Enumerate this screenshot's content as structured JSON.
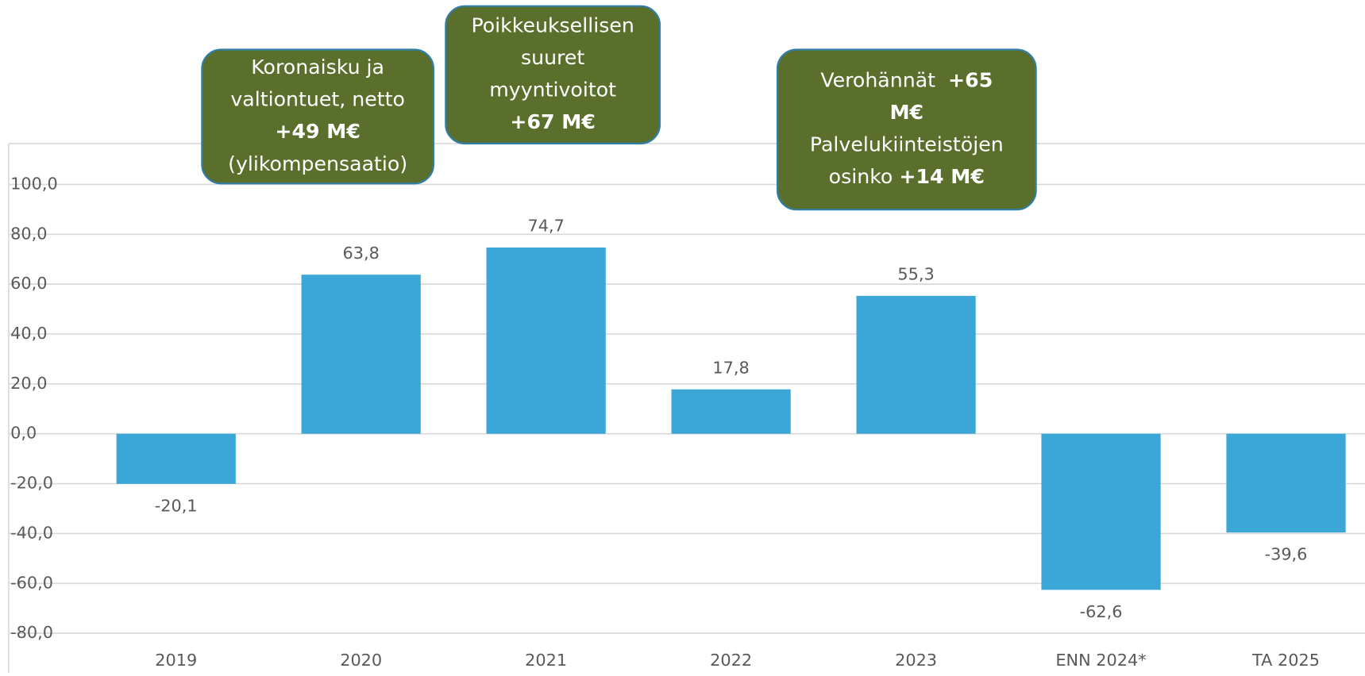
{
  "chart_data": {
    "type": "bar",
    "categories": [
      "2019",
      "2020",
      "2021",
      "2022",
      "2023",
      "ENN 2024*",
      "TA  2025"
    ],
    "values": [
      -20.1,
      63.8,
      74.7,
      17.8,
      55.3,
      -62.6,
      -39.6
    ],
    "value_labels": [
      "-20,1",
      "63,8",
      "74,7",
      "17,8",
      "55,3",
      "-62,6",
      "-39,6"
    ],
    "color": "#3ba6d8",
    "negative_label_color": "#ff0000",
    "ylim": [
      -80,
      100
    ],
    "yticks": [
      {
        "value": -80,
        "label": "-80,0"
      },
      {
        "value": -60,
        "label": "-60,0"
      },
      {
        "value": -40,
        "label": "-40,0"
      },
      {
        "value": -20,
        "label": "-20,0"
      },
      {
        "value": 0,
        "label": "0,0"
      },
      {
        "value": 20,
        "label": "20,0"
      },
      {
        "value": 40,
        "label": "40,0"
      },
      {
        "value": 60,
        "label": "60,0"
      },
      {
        "value": 80,
        "label": "80,0"
      },
      {
        "value": 100,
        "label": "100,0"
      }
    ],
    "grid": true,
    "annotations": [
      {
        "lines": [
          [
            {
              "text": "Koronaisku ja"
            }
          ],
          [
            {
              "text": "valtiontuet, netto"
            }
          ],
          [
            {
              "text": "+49 M€",
              "bold": true
            }
          ],
          [
            {
              "text": "(ylikompensaatio)"
            }
          ]
        ]
      },
      {
        "lines": [
          [
            {
              "text": "Poikkeuksellisen"
            }
          ],
          [
            {
              "text": "suuret"
            }
          ],
          [
            {
              "text": "myyntivoitot"
            }
          ],
          [
            {
              "text": "+67 M€",
              "bold": true
            }
          ]
        ]
      },
      {
        "lines": [
          [
            {
              "text": "Verohännät  "
            },
            {
              "text": "+65",
              "bold": true
            }
          ],
          [
            {
              "text": "M€",
              "bold": true
            }
          ],
          [
            {
              "text": "Palvelukiinteistöjen"
            }
          ],
          [
            {
              "text": "osinko "
            },
            {
              "text": "+14 M€",
              "bold": true
            }
          ]
        ]
      }
    ]
  }
}
